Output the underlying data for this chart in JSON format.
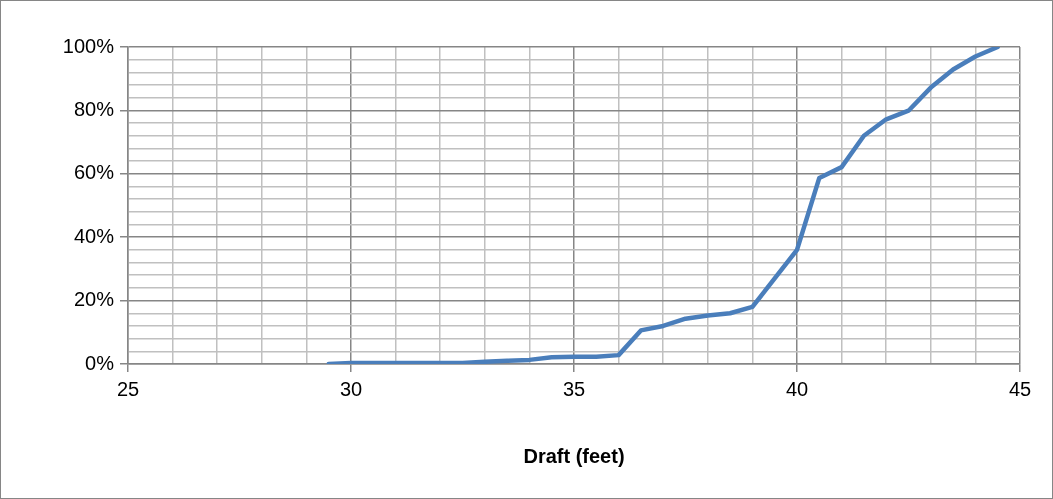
{
  "chart_data": {
    "type": "line",
    "xlabel": "Draft (feet)",
    "x": [
      29.5,
      30,
      30.5,
      31,
      31.5,
      32,
      32.5,
      33,
      33.5,
      34,
      34.5,
      35,
      35.5,
      36,
      36.5,
      37,
      37.5,
      38,
      38.5,
      39,
      39.5,
      40,
      40.5,
      41,
      41.5,
      42,
      42.5,
      43,
      43.5,
      44,
      44.5
    ],
    "series": [
      {
        "color": "#4a7ebb",
        "values": [
          0,
          0.3,
          0.3,
          0.3,
          0.3,
          0.3,
          0.3,
          0.7,
          1,
          1.3,
          2.1,
          2.3,
          2.3,
          2.8,
          10.6,
          12,
          14.3,
          15.3,
          16,
          18,
          27,
          36,
          58.7,
          62.1,
          72,
          77.2,
          79.9,
          87.2,
          92.9,
          97,
          100
        ]
      }
    ],
    "xlim": [
      25,
      45
    ],
    "xticks": [
      25,
      {
        "value": 26,
        "label": null
      },
      {
        "value": 27,
        "label": null
      },
      {
        "value": 28,
        "label": null
      },
      {
        "value": 29,
        "label": null
      },
      30,
      {
        "value": 31,
        "label": null
      },
      {
        "value": 32,
        "label": null
      },
      {
        "value": 33,
        "label": null
      },
      {
        "value": 34,
        "label": null
      },
      35,
      {
        "value": 36,
        "label": null
      },
      {
        "value": 37,
        "label": null
      },
      {
        "value": 38,
        "label": null
      },
      {
        "value": 39,
        "label": null
      },
      40,
      {
        "value": 41,
        "label": null
      },
      {
        "value": 42,
        "label": null
      },
      {
        "value": 43,
        "label": null
      },
      {
        "value": 44,
        "label": null
      },
      45
    ],
    "ylim": [
      0,
      100
    ],
    "yticks": [
      {
        "value": 0,
        "label": "0%"
      },
      {
        "value": 4,
        "label": null
      },
      {
        "value": 8,
        "label": null
      },
      {
        "value": 12,
        "label": null
      },
      {
        "value": 16,
        "label": null
      },
      {
        "value": 20,
        "label": "20%"
      },
      {
        "value": 24,
        "label": null
      },
      {
        "value": 28,
        "label": null
      },
      {
        "value": 32,
        "label": null
      },
      {
        "value": 36,
        "label": null
      },
      {
        "value": 40,
        "label": "40%"
      },
      {
        "value": 44,
        "label": null
      },
      {
        "value": 48,
        "label": null
      },
      {
        "value": 52,
        "label": null
      },
      {
        "value": 56,
        "label": null
      },
      {
        "value": 60,
        "label": "60%"
      },
      {
        "value": 64,
        "label": null
      },
      {
        "value": 68,
        "label": null
      },
      {
        "value": 72,
        "label": null
      },
      {
        "value": 76,
        "label": null
      },
      {
        "value": 80,
        "label": "80%"
      },
      {
        "value": 84,
        "label": null
      },
      {
        "value": 88,
        "label": null
      },
      {
        "value": 92,
        "label": null
      },
      {
        "value": 96,
        "label": null
      },
      {
        "value": 100,
        "label": "100%"
      }
    ],
    "grid": true,
    "legend": false,
    "marker": "none",
    "line_style": "solid"
  }
}
